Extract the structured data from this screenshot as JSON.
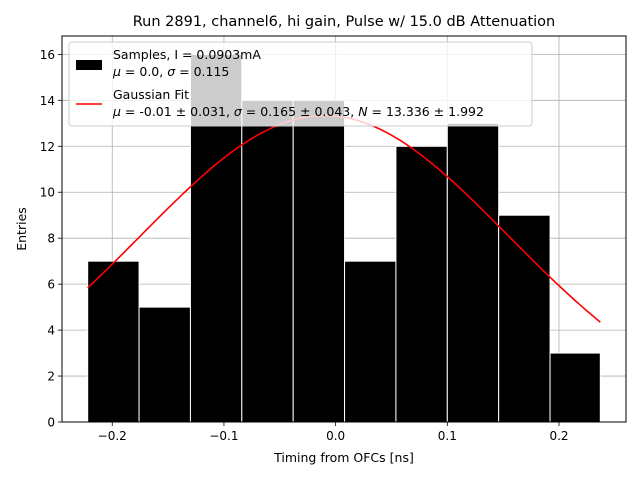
{
  "chart_data": {
    "type": "bar",
    "title": "Run 2891, channel6, hi gain, Pulse w/ 15.0 dB Attenuation",
    "xlabel": "Timing from OFCs [ns]",
    "ylabel": "Entries",
    "xlim": [
      -0.245,
      0.26
    ],
    "ylim": [
      0,
      16.8
    ],
    "xticks": [
      -0.2,
      -0.1,
      0.0,
      0.1,
      0.2
    ],
    "xtick_labels": [
      "−0.2",
      "−0.1",
      "0.0",
      "0.1",
      "0.2"
    ],
    "yticks": [
      0,
      2,
      4,
      6,
      8,
      10,
      12,
      14,
      16
    ],
    "grid": true,
    "legend_position": "top-left",
    "histogram": {
      "bin_edges": [
        -0.222,
        -0.176,
        -0.13,
        -0.084,
        -0.038,
        0.008,
        0.054,
        0.1,
        0.146,
        0.192,
        0.237
      ],
      "counts": [
        7,
        5,
        16,
        14,
        14,
        7,
        12,
        13,
        9,
        3
      ],
      "color": "#000000",
      "edge_color": "#ffffff"
    },
    "fit": {
      "mu": -0.01,
      "sigma": 0.165,
      "N": 13.336,
      "x_range": [
        -0.222,
        0.237
      ],
      "color": "#ff0000"
    },
    "legend": [
      {
        "line1": "Samples, I = 0.0903mA",
        "line2_mu": "0.0",
        "line2_sigma": "0.115"
      },
      {
        "line1": "Gaussian Fit",
        "mu": "-0.01 ± 0.031",
        "sigma": "0.165 ± 0.043",
        "N": "13.336 ± 1.992"
      }
    ]
  }
}
